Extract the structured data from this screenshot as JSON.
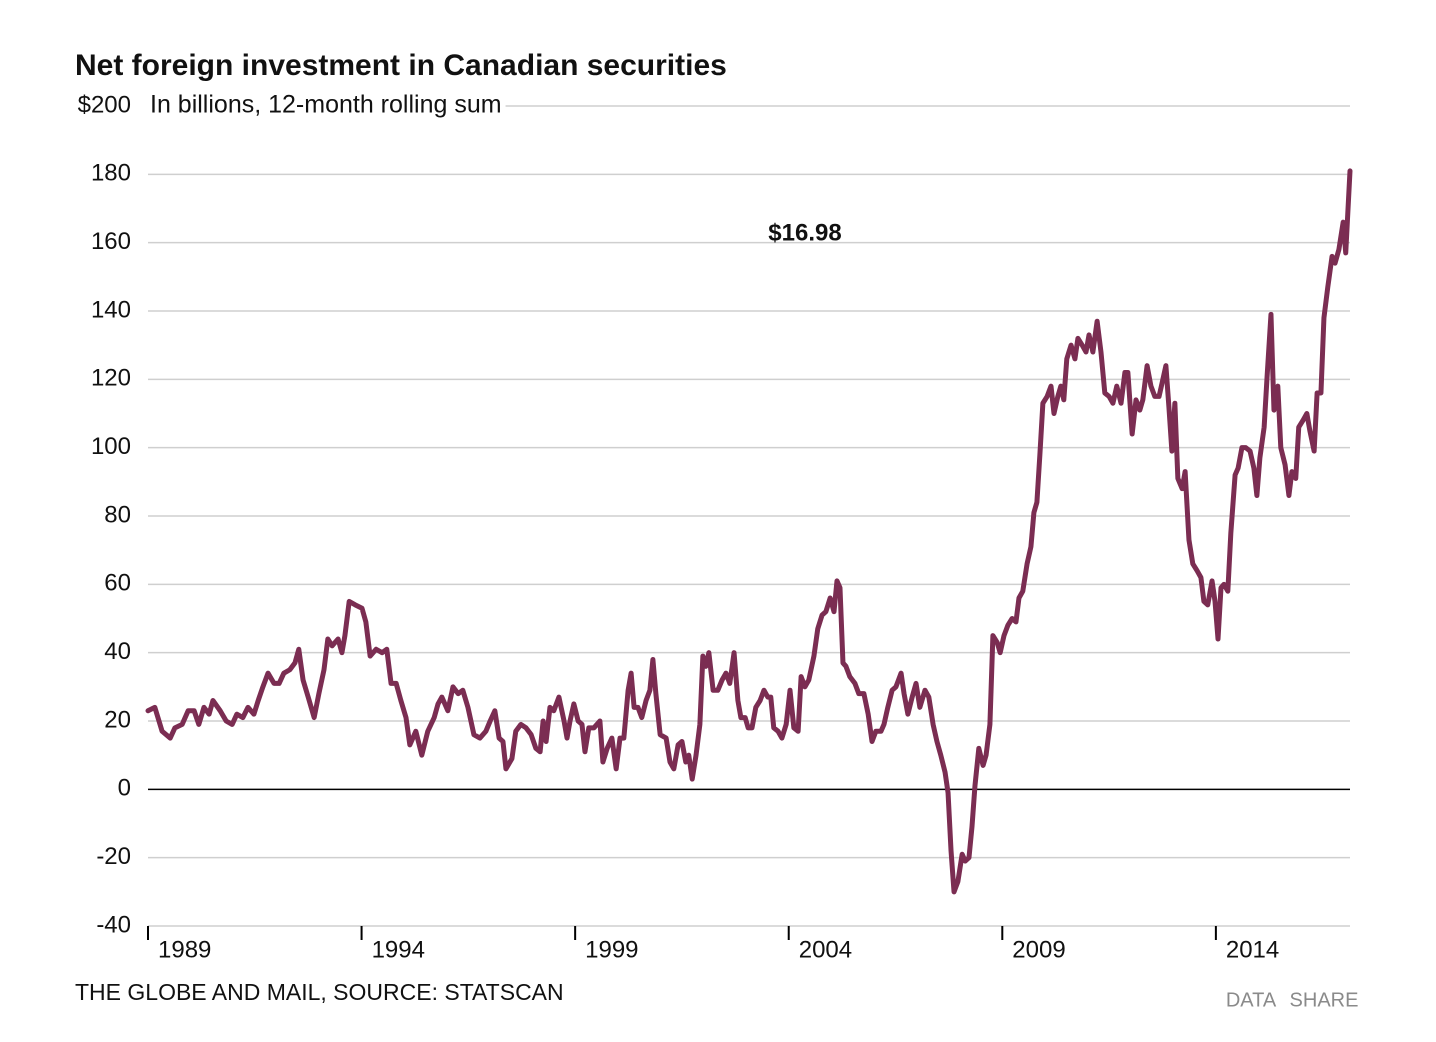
{
  "chart_data": {
    "type": "line",
    "title": "Net foreign investment in Canadian securities",
    "subtitle": "In billions, 12-month rolling sum",
    "annotation": "$16.98",
    "source": "THE GLOBE AND MAIL, SOURCE: STATSCAN",
    "buttons": [
      "DATA",
      "SHARE"
    ],
    "color": "#7b2d52",
    "grid": true,
    "xlim": [
      1989,
      2017.14
    ],
    "xticks": [
      1989,
      1994,
      1999,
      2004,
      2009,
      2014
    ],
    "ylim": [
      -40,
      200
    ],
    "yticks": [
      -40,
      -20,
      0,
      20,
      40,
      60,
      80,
      100,
      120,
      140,
      160,
      180,
      {
        "value": 200,
        "label": "$200"
      }
    ],
    "x": [
      1989.0,
      1989.16,
      1989.33,
      1989.52,
      1989.63,
      1989.8,
      1989.94,
      1990.08,
      1990.19,
      1990.31,
      1990.43,
      1990.52,
      1990.69,
      1990.83,
      1990.97,
      1991.08,
      1991.22,
      1991.34,
      1991.48,
      1991.58,
      1991.69,
      1991.81,
      1991.95,
      1992.07,
      1992.18,
      1992.32,
      1992.44,
      1992.53,
      1992.63,
      1992.75,
      1992.89,
      1993.0,
      1993.12,
      1993.21,
      1993.31,
      1993.45,
      1993.54,
      1993.61,
      1993.71,
      1993.85,
      1994.01,
      1994.1,
      1994.2,
      1994.34,
      1994.48,
      1994.59,
      1994.69,
      1994.81,
      1994.92,
      1995.04,
      1995.13,
      1995.27,
      1995.41,
      1995.55,
      1995.7,
      1995.79,
      1995.88,
      1996.02,
      1996.14,
      1996.26,
      1996.37,
      1996.49,
      1996.63,
      1996.77,
      1996.91,
      1997.01,
      1997.12,
      1997.22,
      1997.31,
      1997.38,
      1997.52,
      1997.61,
      1997.73,
      1997.85,
      1997.97,
      1998.08,
      1998.18,
      1998.25,
      1998.32,
      1998.41,
      1998.5,
      1998.62,
      1998.74,
      1998.81,
      1998.88,
      1998.97,
      1999.07,
      1999.16,
      1999.23,
      1999.32,
      1999.44,
      1999.58,
      1999.65,
      1999.75,
      1999.86,
      1999.96,
      2000.05,
      2000.14,
      2000.24,
      2000.31,
      2000.38,
      2000.47,
      2000.56,
      2000.66,
      2000.75,
      2000.82,
      2000.89,
      2000.99,
      2001.13,
      2001.22,
      2001.31,
      2001.41,
      2001.5,
      2001.59,
      2001.66,
      2001.74,
      2001.83,
      2001.92,
      2001.99,
      2002.06,
      2002.13,
      2002.23,
      2002.34,
      2002.44,
      2002.53,
      2002.62,
      2002.72,
      2002.81,
      2002.88,
      2002.98,
      2003.05,
      2003.14,
      2003.23,
      2003.33,
      2003.42,
      2003.51,
      2003.58,
      2003.65,
      2003.75,
      2003.84,
      2003.94,
      2004.03,
      2004.12,
      2004.22,
      2004.29,
      2004.38,
      2004.47,
      2004.59,
      2004.68,
      2004.78,
      2004.87,
      2004.97,
      2005.06,
      2005.13,
      2005.2,
      2005.27,
      2005.34,
      2005.43,
      2005.55,
      2005.64,
      2005.76,
      2005.86,
      2005.95,
      2006.04,
      2006.16,
      2006.23,
      2006.32,
      2006.42,
      2006.51,
      2006.63,
      2006.7,
      2006.79,
      2006.89,
      2006.98,
      2007.07,
      2007.19,
      2007.28,
      2007.38,
      2007.47,
      2007.56,
      2007.66,
      2007.73,
      2007.8,
      2007.87,
      2007.96,
      2008.06,
      2008.13,
      2008.22,
      2008.29,
      2008.36,
      2008.45,
      2008.55,
      2008.62,
      2008.71,
      2008.78,
      2008.88,
      2008.95,
      2009.04,
      2009.13,
      2009.23,
      2009.32,
      2009.39,
      2009.48,
      2009.58,
      2009.67,
      2009.74,
      2009.81,
      2009.88,
      2009.95,
      2010.05,
      2010.14,
      2010.21,
      2010.3,
      2010.37,
      2010.44,
      2010.51,
      2010.61,
      2010.7,
      2010.77,
      2010.87,
      2010.96,
      2011.03,
      2011.12,
      2011.22,
      2011.31,
      2011.4,
      2011.5,
      2011.59,
      2011.68,
      2011.78,
      2011.87,
      2011.94,
      2012.04,
      2012.13,
      2012.22,
      2012.29,
      2012.39,
      2012.48,
      2012.57,
      2012.67,
      2012.76,
      2012.83,
      2012.9,
      2012.97,
      2013.04,
      2013.11,
      2013.21,
      2013.28,
      2013.37,
      2013.46,
      2013.56,
      2013.65,
      2013.72,
      2013.81,
      2013.91,
      2013.98,
      2014.05,
      2014.12,
      2014.19,
      2014.28,
      2014.35,
      2014.45,
      2014.52,
      2014.61,
      2014.7,
      2014.8,
      2014.89,
      2014.96,
      2015.03,
      2015.13,
      2015.2,
      2015.29,
      2015.36,
      2015.45,
      2015.52,
      2015.62,
      2015.71,
      2015.78,
      2015.87,
      2015.94,
      2016.04,
      2016.13,
      2016.2,
      2016.3,
      2016.37,
      2016.46,
      2016.53,
      2016.62,
      2016.72,
      2016.79,
      2016.88,
      2016.98,
      2017.04,
      2017.14
    ],
    "values": [
      23,
      24,
      17,
      15,
      18,
      19,
      23,
      23,
      19,
      24,
      22,
      26,
      23,
      20,
      19,
      22,
      21,
      24,
      22,
      26,
      30,
      34,
      31,
      31,
      34,
      35,
      37,
      41,
      32,
      27,
      21,
      28,
      35,
      44,
      42,
      44,
      40,
      45,
      55,
      54,
      53,
      49,
      39,
      41,
      40,
      41,
      31,
      31,
      26,
      21,
      13,
      17,
      10,
      17,
      21,
      25,
      27,
      23,
      30,
      28,
      29,
      24,
      16,
      15,
      17,
      20,
      23,
      15,
      14,
      6,
      9,
      17,
      19,
      18,
      16,
      12,
      11,
      20,
      14,
      24,
      23,
      27,
      20,
      15,
      20,
      25,
      20,
      19,
      11,
      18,
      18,
      20,
      8,
      12,
      15,
      6,
      15,
      15,
      29,
      34,
      24,
      24,
      21,
      26,
      29,
      38,
      28,
      16,
      15,
      8,
      6,
      13,
      14,
      8,
      10,
      3,
      10,
      19,
      39,
      36,
      40,
      29,
      29,
      32,
      34,
      31,
      40,
      26,
      21,
      21,
      18,
      18,
      24,
      26,
      29,
      27,
      27,
      18,
      17,
      15,
      19,
      29,
      18,
      17,
      33,
      30,
      32,
      39,
      47,
      51,
      52,
      56,
      52,
      61,
      59,
      37,
      36,
      33,
      31,
      28,
      28,
      22,
      14,
      17,
      17,
      19,
      24,
      29,
      30,
      34,
      28,
      22,
      27,
      31,
      24,
      29,
      27,
      19,
      14,
      10,
      5,
      -1,
      -18,
      -30,
      -27,
      -19,
      -21,
      -20,
      -11,
      1,
      12,
      7,
      10,
      19,
      45,
      43,
      40,
      45,
      48,
      50,
      49,
      56,
      58,
      66,
      71,
      81,
      84,
      98,
      113,
      115,
      118,
      110,
      115,
      118,
      114,
      126,
      130,
      126,
      132,
      130,
      128,
      133,
      128,
      137,
      128,
      116,
      115,
      113,
      118,
      113,
      122,
      122,
      104,
      114,
      111,
      114,
      124,
      118,
      115,
      115,
      120,
      124,
      112,
      99,
      113,
      91,
      88,
      93,
      73,
      66,
      64,
      62,
      55,
      54,
      61,
      55,
      44,
      59,
      60,
      58,
      75,
      92,
      94,
      100,
      100,
      99,
      94,
      86,
      97,
      106,
      121,
      139,
      111,
      118,
      100,
      95,
      86,
      93,
      91,
      106,
      108,
      110,
      105,
      99,
      116,
      116,
      138,
      147,
      156,
      154,
      158,
      166,
      157,
      181
    ]
  }
}
